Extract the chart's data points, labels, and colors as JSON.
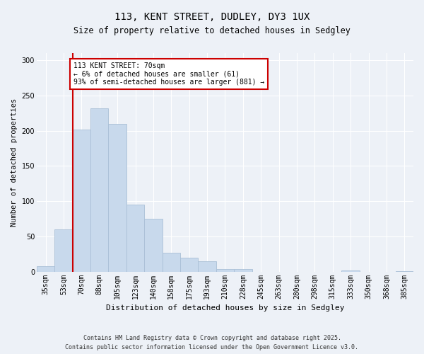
{
  "title": "113, KENT STREET, DUDLEY, DY3 1UX",
  "subtitle": "Size of property relative to detached houses in Sedgley",
  "xlabel": "Distribution of detached houses by size in Sedgley",
  "ylabel": "Number of detached properties",
  "footnote": "Contains HM Land Registry data © Crown copyright and database right 2025.\nContains public sector information licensed under the Open Government Licence v3.0.",
  "categories": [
    "35sqm",
    "53sqm",
    "70sqm",
    "88sqm",
    "105sqm",
    "123sqm",
    "140sqm",
    "158sqm",
    "175sqm",
    "193sqm",
    "210sqm",
    "228sqm",
    "245sqm",
    "263sqm",
    "280sqm",
    "298sqm",
    "315sqm",
    "333sqm",
    "350sqm",
    "368sqm",
    "385sqm"
  ],
  "values": [
    8,
    60,
    202,
    232,
    210,
    95,
    75,
    27,
    20,
    15,
    4,
    4,
    0,
    0,
    0,
    0,
    0,
    2,
    0,
    0,
    1
  ],
  "bar_color": "#c8d9ec",
  "bar_edge_color": "#aabfd6",
  "annotation_text_line1": "113 KENT STREET: 70sqm",
  "annotation_text_line2": "← 6% of detached houses are smaller (61)",
  "annotation_text_line3": "93% of semi-detached houses are larger (881) →",
  "red_line_index": 2,
  "bg_color": "#edf1f7",
  "grid_color": "#ffffff",
  "annotation_box_facecolor": "#ffffff",
  "annotation_box_edgecolor": "#cc0000",
  "red_line_color": "#cc0000",
  "ylim": [
    0,
    310
  ],
  "yticks": [
    0,
    50,
    100,
    150,
    200,
    250,
    300
  ],
  "title_fontsize": 10,
  "subtitle_fontsize": 8.5,
  "ylabel_fontsize": 7.5,
  "xlabel_fontsize": 8,
  "tick_fontsize": 7,
  "annotation_fontsize": 7,
  "footnote_fontsize": 6
}
